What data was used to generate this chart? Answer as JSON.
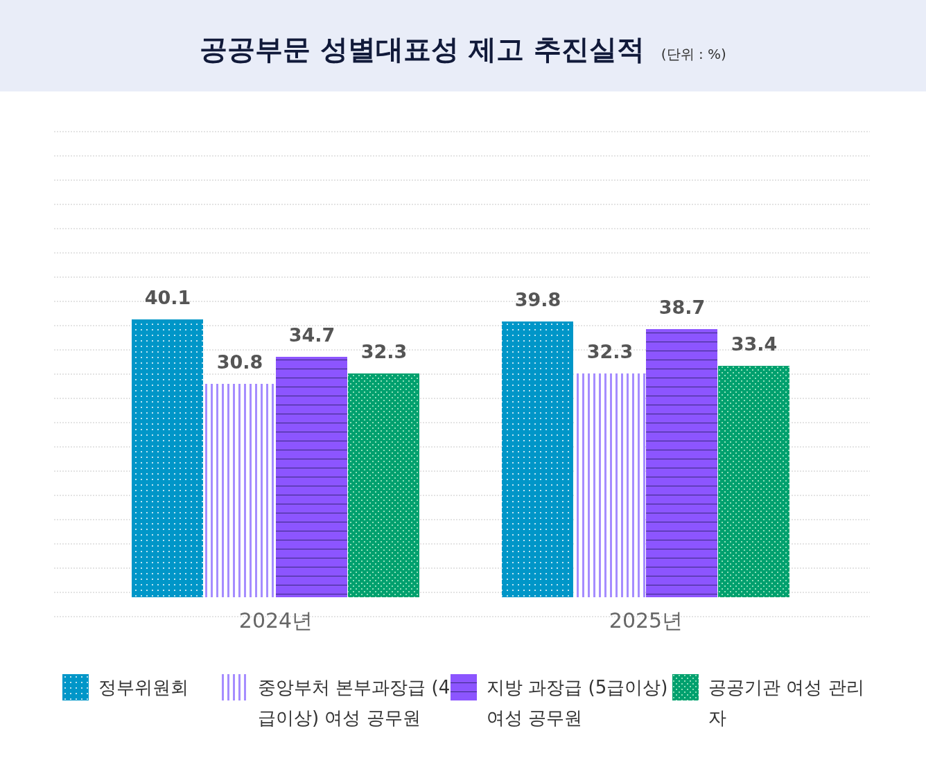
{
  "chart_data": {
    "type": "bar",
    "title": "공공부문 성별대표성 제고 추진실적",
    "subtitle": "(단위 : %)",
    "categories": [
      "2024년",
      "2025년"
    ],
    "series": [
      {
        "name": "정부위원회",
        "color": "#0096c8",
        "values": [
          40.1,
          39.8
        ]
      },
      {
        "name": "중앙부처 본부과장급 (4급이상) 여성 공무원",
        "color": "#a58cff",
        "values": [
          30.8,
          32.3
        ]
      },
      {
        "name": "지방 과장급 (5급이상) 여성 공무원",
        "color": "#8c55ff",
        "values": [
          34.7,
          38.7
        ]
      },
      {
        "name": "공공기관 여성 관리자",
        "color": "#00a06e",
        "values": [
          32.3,
          33.4
        ]
      }
    ],
    "ylim": [
      -2.8,
      67.2
    ],
    "yticks": [
      {
        "value": -2.8,
        "label": null
      },
      {
        "value": 0.7,
        "label": null
      },
      {
        "value": 4.2,
        "label": null
      },
      {
        "value": 7.7,
        "label": null
      },
      {
        "value": 11.2,
        "label": null
      },
      {
        "value": 14.7,
        "label": null
      },
      {
        "value": 18.2,
        "label": null
      },
      {
        "value": 21.7,
        "label": null
      },
      {
        "value": 25.2,
        "label": null
      },
      {
        "value": 28.7,
        "label": null
      },
      {
        "value": 32.2,
        "label": null
      },
      {
        "value": 35.7,
        "label": null
      },
      {
        "value": 39.2,
        "label": null
      },
      {
        "value": 42.7,
        "label": null
      },
      {
        "value": 46.2,
        "label": null
      },
      {
        "value": 49.7,
        "label": null
      },
      {
        "value": 53.2,
        "label": null
      },
      {
        "value": 56.7,
        "label": null
      },
      {
        "value": 60.2,
        "label": null
      },
      {
        "value": 63.7,
        "label": null
      },
      {
        "value": 67.2,
        "label": null
      }
    ],
    "grid": "y",
    "data_labels": true,
    "legend": "bottom"
  }
}
